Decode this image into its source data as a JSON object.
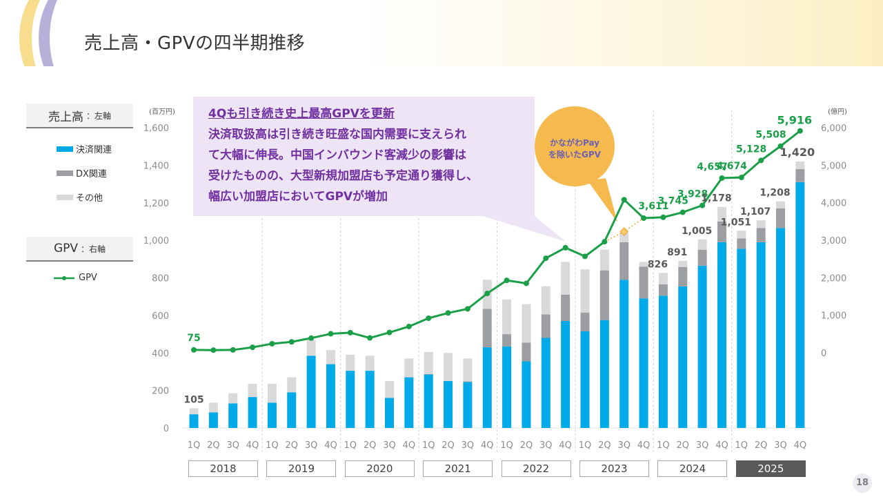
{
  "page": {
    "title": "売上高・GPVの四半期推移",
    "page_number": "18"
  },
  "legend": {
    "revenue_header": "売上高",
    "revenue_axis_note": "：左軸",
    "revenue_items": [
      {
        "label": "決済関連",
        "color": "#00a9e8"
      },
      {
        "label": "DX関連",
        "color": "#9d9ea2"
      },
      {
        "label": "その他",
        "color": "#d9d9d9"
      }
    ],
    "gpv_header": "GPV",
    "gpv_axis_note": "：右軸",
    "gpv_item": {
      "label": "GPV",
      "color": "#1a9e48"
    }
  },
  "callout": {
    "title": "4Qも引き続き史上最高GPVを更新",
    "lines": [
      "決済取扱高は引き続き旺盛な国内需要に支えられ",
      "て大幅に伸長。中国インバウンド客減少の影響は",
      "受けたものの、大型新規加盟店も予定通り獲得し、",
      "幅広い加盟店においてGPVが増加"
    ]
  },
  "bubble": {
    "line1": "かながわPay",
    "line2": "を除いたGPV",
    "color": "#f5b94e"
  },
  "chart_data": {
    "type": "bar",
    "title": "売上高・GPVの四半期推移",
    "categories": [
      "1Q",
      "2Q",
      "3Q",
      "4Q",
      "1Q",
      "2Q",
      "3Q",
      "4Q",
      "1Q",
      "2Q",
      "3Q",
      "4Q",
      "1Q",
      "2Q",
      "3Q",
      "4Q",
      "1Q",
      "2Q",
      "3Q",
      "4Q",
      "1Q",
      "2Q",
      "3Q",
      "4Q",
      "1Q",
      "2Q",
      "3Q",
      "4Q",
      "1Q",
      "2Q",
      "3Q",
      "4Q"
    ],
    "years": [
      "2018",
      "2019",
      "2020",
      "2021",
      "2022",
      "2023",
      "2024",
      "2025"
    ],
    "highlight_year": "2025",
    "left_axis": {
      "unit": "(百万円)",
      "ticks": [
        "0",
        "200",
        "400",
        "600",
        "800",
        "1,000",
        "1,200",
        "1,400",
        "1,600"
      ],
      "range": [
        0,
        1600
      ]
    },
    "right_axis": {
      "unit": "(億円)",
      "ticks": [
        "0",
        "1,000",
        "2,000",
        "3,000",
        "4,000",
        "5,000",
        "6,000"
      ],
      "range": [
        -2000,
        6000
      ]
    },
    "series": [
      {
        "name": "決済関連",
        "axis": "left",
        "stack": "revenue",
        "color": "#00a9e8",
        "values": [
          73,
          83,
          131,
          165,
          135,
          190,
          385,
          340,
          305,
          305,
          160,
          270,
          285,
          250,
          245,
          430,
          435,
          355,
          480,
          570,
          515,
          575,
          790,
          690,
          705,
          755,
          865,
          990,
          955,
          990,
          1065,
          1310
        ]
      },
      {
        "name": "DX関連",
        "axis": "left",
        "stack": "revenue",
        "color": "#9d9ea2",
        "values": [
          0,
          0,
          0,
          0,
          0,
          0,
          0,
          0,
          0,
          0,
          0,
          0,
          2,
          0,
          3,
          205,
          65,
          100,
          125,
          140,
          100,
          265,
          200,
          170,
          60,
          103,
          85,
          110,
          55,
          75,
          105,
          70
        ]
      },
      {
        "name": "その他",
        "axis": "left",
        "stack": "revenue",
        "color": "#d9d9d9",
        "values": [
          32,
          52,
          54,
          70,
          100,
          80,
          85,
          75,
          85,
          80,
          90,
          100,
          118,
          150,
          122,
          155,
          185,
          205,
          150,
          175,
          230,
          110,
          50,
          25,
          61,
          33,
          55,
          78,
          41,
          42,
          38,
          40
        ]
      },
      {
        "name": "GPV",
        "axis": "right",
        "type": "line",
        "color": "#1a9e48",
        "values": [
          75,
          70,
          75,
          145,
          240,
          290,
          390,
          505,
          535,
          395,
          540,
          700,
          920,
          1060,
          1170,
          1580,
          1930,
          1850,
          2520,
          2800,
          2570,
          2960,
          4080,
          3590,
          3611,
          3745,
          3928,
          4657,
          4674,
          5128,
          5508,
          5916
        ]
      }
    ],
    "revenue_total_labels": [
      {
        "index": 0,
        "label": "105"
      },
      {
        "index": 24,
        "label": "826"
      },
      {
        "index": 25,
        "label": "891"
      },
      {
        "index": 26,
        "label": "1,005"
      },
      {
        "index": 27,
        "label": "1,178"
      },
      {
        "index": 28,
        "label": "1,051"
      },
      {
        "index": 29,
        "label": "1,107"
      },
      {
        "index": 30,
        "label": "1,208"
      },
      {
        "index": 31,
        "label": "1,420"
      }
    ],
    "gpv_labels": [
      {
        "index": 0,
        "label": "75"
      },
      {
        "index": 24,
        "label": "3,611"
      },
      {
        "index": 25,
        "label": "3,745"
      },
      {
        "index": 26,
        "label": "3,928"
      },
      {
        "index": 27,
        "label": "4,657"
      },
      {
        "index": 28,
        "label": "4,674"
      },
      {
        "index": 29,
        "label": "5,128"
      },
      {
        "index": 30,
        "label": "5,508"
      },
      {
        "index": 31,
        "label": "5,916"
      }
    ],
    "gpv_excluding_kanagawa_pay": {
      "from_index": 21,
      "to_index": 23,
      "points": [
        {
          "index": 21,
          "value": 2960
        },
        {
          "index": 22,
          "value": 3230
        },
        {
          "index": 23,
          "value": 3590
        }
      ]
    }
  }
}
